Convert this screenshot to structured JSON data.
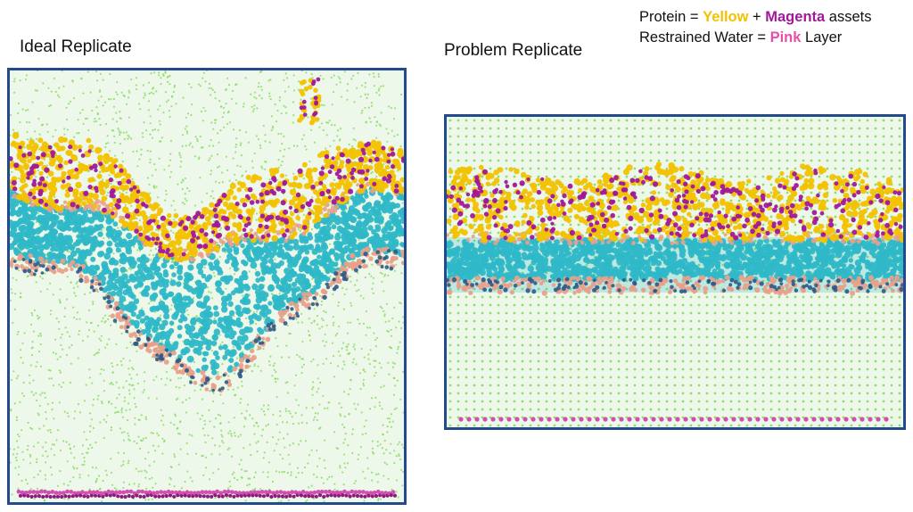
{
  "panels": {
    "ideal": {
      "title": "Ideal Replicate"
    },
    "problem": {
      "title": "Problem Replicate"
    }
  },
  "legend": {
    "line1": {
      "prefix": "Protein = ",
      "yellow": "Yellow",
      "plus": " + ",
      "magenta": "Magenta",
      "suffix": " assets"
    },
    "line2": {
      "prefix": "Restrained Water = ",
      "pink": "Pink",
      "suffix": " Layer"
    }
  },
  "colors": {
    "water": "#7ed957",
    "lipid_head": "#e8a08a",
    "lipid_tail": "#2fb8c8",
    "lipid_dark": "#2a5a8a",
    "protein_yellow": "#f2c200",
    "protein_magenta": "#a0189b",
    "restrained_water": "#d14fb0",
    "frame": "#234a8a"
  }
}
